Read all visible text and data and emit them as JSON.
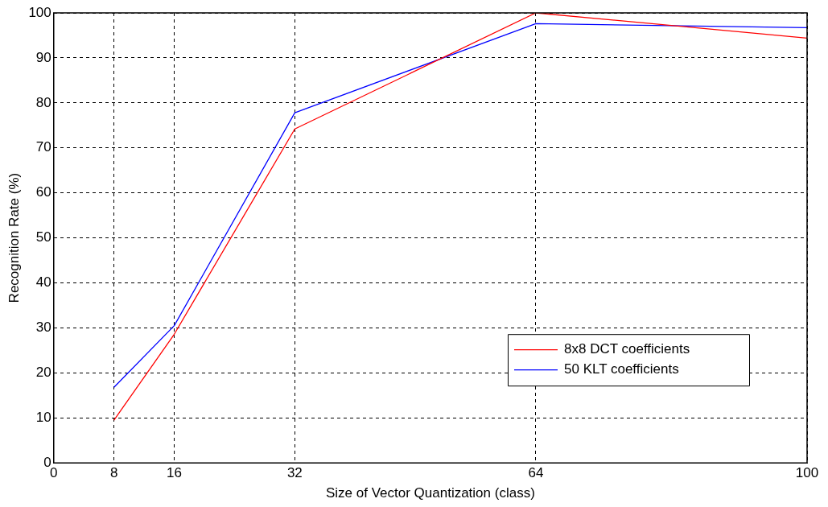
{
  "chart_data": {
    "type": "line",
    "xlabel": "Size of Vector Quantization (class)",
    "ylabel": "Recognition Rate (%)",
    "x": [
      8,
      16,
      32,
      64,
      100
    ],
    "series": [
      {
        "name": "8x8 DCT coefficients",
        "color": "#ff0000",
        "values": [
          9.5,
          28.6,
          74.2,
          100,
          94.4
        ]
      },
      {
        "name": "50 KLT coefficients",
        "color": "#0000ff",
        "values": [
          16.8,
          30.5,
          77.8,
          97.6,
          96.7
        ]
      }
    ],
    "xlim": [
      0,
      100
    ],
    "xticks": [
      0,
      8,
      16,
      32,
      64,
      100
    ],
    "ylim": [
      0,
      100
    ],
    "yticks": [
      0,
      10,
      20,
      30,
      40,
      50,
      60,
      70,
      80,
      90,
      100
    ],
    "grid": true,
    "legend": "bottom right",
    "marker": "none",
    "line_style": "solid"
  }
}
